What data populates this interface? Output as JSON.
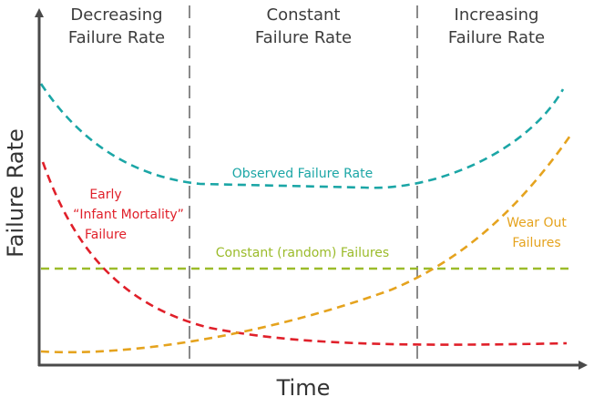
{
  "diagram": {
    "regions": [
      {
        "line1": "Decreasing",
        "line2": "Failure Rate"
      },
      {
        "line1": "Constant",
        "line2": "Failure Rate"
      },
      {
        "line1": "Increasing",
        "line2": "Failure Rate"
      }
    ],
    "axes": {
      "y_label": "Failure Rate",
      "x_label": "Time"
    },
    "curves": {
      "observed": {
        "label": "Observed Failure Rate"
      },
      "infant": {
        "line1": "Early",
        "line2": "“Infant Mortality”",
        "line3": "Failure"
      },
      "constant": {
        "label": "Constant (random) Failures"
      },
      "wearout": {
        "line1": "Wear Out",
        "line2": "Failures"
      }
    },
    "colors": {
      "observed": "#1ba6a6",
      "infant": "#e0202a",
      "constant": "#9bbb2a",
      "wearout": "#e5a31e",
      "axis": "#4a4a4a",
      "divider": "#8a8a8a",
      "text": "#3c3c3c"
    }
  }
}
